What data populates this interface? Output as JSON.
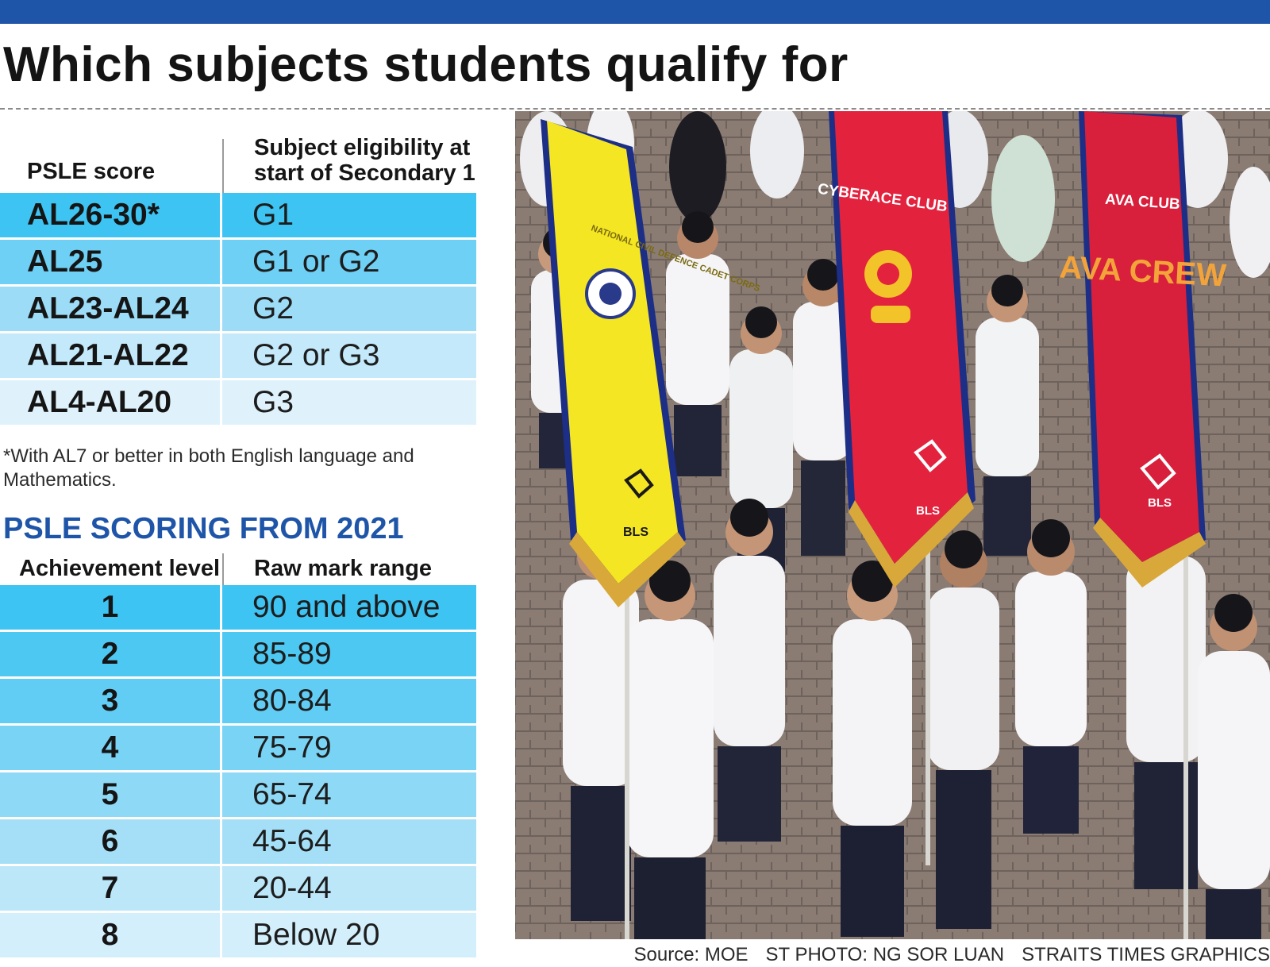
{
  "title": "Which subjects students qualify for",
  "eligibility_table": {
    "header_score": "PSLE score",
    "header_eligibility": "Subject eligibility at start of Secondary 1",
    "rows": [
      {
        "score": "AL26-30*",
        "eligibility": "G1"
      },
      {
        "score": "AL25",
        "eligibility": "G1 or G2"
      },
      {
        "score": "AL23-AL24",
        "eligibility": "G2"
      },
      {
        "score": "AL21-AL22",
        "eligibility": "G2 or G3"
      },
      {
        "score": "AL4-AL20",
        "eligibility": "G3"
      }
    ]
  },
  "footnote": "*With AL7 or better in both English language and Mathematics.",
  "scoring_heading": "PSLE SCORING FROM 2021",
  "scoring_table": {
    "header_level": "Achievement level",
    "header_range": "Raw mark range",
    "rows": [
      {
        "level": "1",
        "range": "90 and above"
      },
      {
        "level": "2",
        "range": "85-89"
      },
      {
        "level": "3",
        "range": "80-84"
      },
      {
        "level": "4",
        "range": "75-79"
      },
      {
        "level": "5",
        "range": "65-74"
      },
      {
        "level": "6",
        "range": "45-64"
      },
      {
        "level": "7",
        "range": "20-44"
      },
      {
        "level": "8",
        "range": "Below 20"
      }
    ]
  },
  "photo": {
    "banner_left_text": "NATIONAL CIVIL DEFENCE CADET CORPS",
    "banner_middle_text": "CYBERACE CLUB",
    "banner_right_text": "AVA CLUB",
    "banner_right_sub": "AVA CREW",
    "banner_logo_text": "BLS"
  },
  "credits": {
    "source": "Source: MOE",
    "photo": "ST PHOTO: NG SOR LUAN",
    "graphics": "STRAITS TIMES GRAPHICS"
  },
  "colors": {
    "brand_blue": "#1f55a8",
    "row_shades": [
      "#3ec4f2",
      "#6fd0f5",
      "#9ddcf7",
      "#c4e9fa",
      "#dff2fc"
    ],
    "level_shades": [
      "#3ec4f2",
      "#4cc8f3",
      "#62cdf4",
      "#79d3f5",
      "#8ed9f6",
      "#a5dff7",
      "#bce7f9",
      "#d3effb"
    ]
  }
}
